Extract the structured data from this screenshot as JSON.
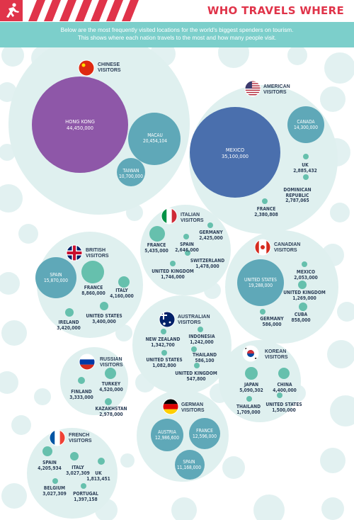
{
  "header": {
    "title": "WHO TRAVELS WHERE",
    "intro": [
      "Below are the most frequently visited locations for the world's biggest spenders on tourism.",
      "This shows where each nation travels to the most and how many people visit."
    ]
  },
  "colors": {
    "background_bubble": "#dff0ef",
    "china": "#8e57a8",
    "usa": "#4a6fad",
    "teal": "#5fa8b8",
    "green": "#66c0ad",
    "banner": "#7ccfcb",
    "accent": "#e0344a",
    "label": "#2c3e57"
  },
  "chart_data": [
    {
      "type": "bubble",
      "group": "CHINESE\nVISITORS",
      "flag": "china",
      "points": [
        {
          "name": "HONG KONG",
          "value": 44450000,
          "label": "44,450,000"
        },
        {
          "name": "MACAU",
          "value": 20454104,
          "label": "20,454,104"
        },
        {
          "name": "TAIWAN",
          "value": 10700000,
          "label": "10,700,000"
        }
      ]
    },
    {
      "type": "bubble",
      "group": "AMERICAN\nVISITORS",
      "flag": "usa",
      "points": [
        {
          "name": "MEXICO",
          "value": 35100000,
          "label": "35,100,000"
        },
        {
          "name": "CANADA",
          "value": 14300000,
          "label": "14,300,000"
        },
        {
          "name": "UK",
          "value": 2885432,
          "label": "2,885,432"
        },
        {
          "name": "DOMINICAN\nREPUBLIC",
          "value": 2787065,
          "label": "2,787,065"
        },
        {
          "name": "FRANCE",
          "value": 2380808,
          "label": "2,380,808"
        }
      ]
    },
    {
      "type": "bubble",
      "group": "ITALIAN\nVISITORS",
      "flag": "italy",
      "points": [
        {
          "name": "FRANCE",
          "value": 5435000,
          "label": "5,435,000"
        },
        {
          "name": "GERMANY",
          "value": 2425000,
          "label": "2,425,000"
        },
        {
          "name": "SPAIN",
          "value": 2646000,
          "label": "2,646,000"
        },
        {
          "name": "SWITZERLAND",
          "value": 1478000,
          "label": "1,478,000"
        },
        {
          "name": "UNITED KINGDOM",
          "value": 1746000,
          "label": "1,746,000"
        }
      ]
    },
    {
      "type": "bubble",
      "group": "BRITISH\nVISITORS",
      "flag": "uk",
      "points": [
        {
          "name": "SPAIN",
          "value": 15870000,
          "label": "15,870,000"
        },
        {
          "name": "FRANCE",
          "value": 8860000,
          "label": "8,860,000"
        },
        {
          "name": "ITALY",
          "value": 4160000,
          "label": "4,160,000"
        },
        {
          "name": "UNITED STATES",
          "value": 3400000,
          "label": "3,400,000"
        },
        {
          "name": "IRELAND",
          "value": 3420000,
          "label": "3,420,000"
        }
      ]
    },
    {
      "type": "bubble",
      "group": "CANADIAN\nVISITORS",
      "flag": "canada",
      "points": [
        {
          "name": "UNITED STATES",
          "value": 19288000,
          "label": "19,288,000"
        },
        {
          "name": "MEXICO",
          "value": 2053000,
          "label": "2,053,000"
        },
        {
          "name": "UNITED KINGDOM",
          "value": 1269000,
          "label": "1,269,000"
        },
        {
          "name": "GERMANY",
          "value": 586000,
          "label": "586,000"
        },
        {
          "name": "CUBA",
          "value": 858000,
          "label": "858,000"
        }
      ]
    },
    {
      "type": "bubble",
      "group": "AUSTRALIAN\nVISITORS",
      "flag": "australia",
      "points": [
        {
          "name": "NEW ZEALAND",
          "value": 1342700,
          "label": "1,342,700"
        },
        {
          "name": "INDONESIA",
          "value": 1242000,
          "label": "1,242,000"
        },
        {
          "name": "UNITED STATES",
          "value": 1082800,
          "label": "1,082,800"
        },
        {
          "name": "THAILAND",
          "value": 586100,
          "label": "586,100"
        },
        {
          "name": "UNITED KINGDOM",
          "value": 547800,
          "label": "547,800"
        }
      ]
    },
    {
      "type": "bubble",
      "group": "RUSSIAN\nVISITORS",
      "flag": "russia",
      "points": [
        {
          "name": "TURKEY",
          "value": 4520000,
          "label": "4,520,000"
        },
        {
          "name": "FINLAND",
          "value": 3333000,
          "label": "3,333,000"
        },
        {
          "name": "KAZAKHSTAN",
          "value": 2978000,
          "label": "2,978,000"
        }
      ]
    },
    {
      "type": "bubble",
      "group": "KOREAN\nVISITORS",
      "flag": "korea",
      "points": [
        {
          "name": "JAPAN",
          "value": 5090302,
          "label": "5,090,302"
        },
        {
          "name": "CHINA",
          "value": 4400000,
          "label": "4,400,000"
        },
        {
          "name": "THAILAND",
          "value": 1709000,
          "label": "1,709,000"
        },
        {
          "name": "UNITED STATES",
          "value": 1500000,
          "label": "1,500,000"
        }
      ]
    },
    {
      "type": "bubble",
      "group": "GERMAN\nVISITORS",
      "flag": "germany",
      "points": [
        {
          "name": "AUSTRIA",
          "value": 12986600,
          "label": "12,986,600"
        },
        {
          "name": "FRANCE",
          "value": 12596000,
          "label": "12,596,000"
        },
        {
          "name": "SPAIN",
          "value": 11168000,
          "label": "11,168,000"
        }
      ]
    },
    {
      "type": "bubble",
      "group": "FRENCH\nVISITORS",
      "flag": "france",
      "points": [
        {
          "name": "SPAIN",
          "value": 4205934,
          "label": "4,205,934"
        },
        {
          "name": "ITALY",
          "value": 3027309,
          "label": "3,027,309"
        },
        {
          "name": "UK",
          "value": 1813451,
          "label": "1,813,451"
        },
        {
          "name": "BELGIUM",
          "value": 3027309,
          "label": "3,027,309"
        },
        {
          "name": "PORTUGAL",
          "value": 1397158,
          "label": "1,397,158"
        }
      ]
    }
  ]
}
